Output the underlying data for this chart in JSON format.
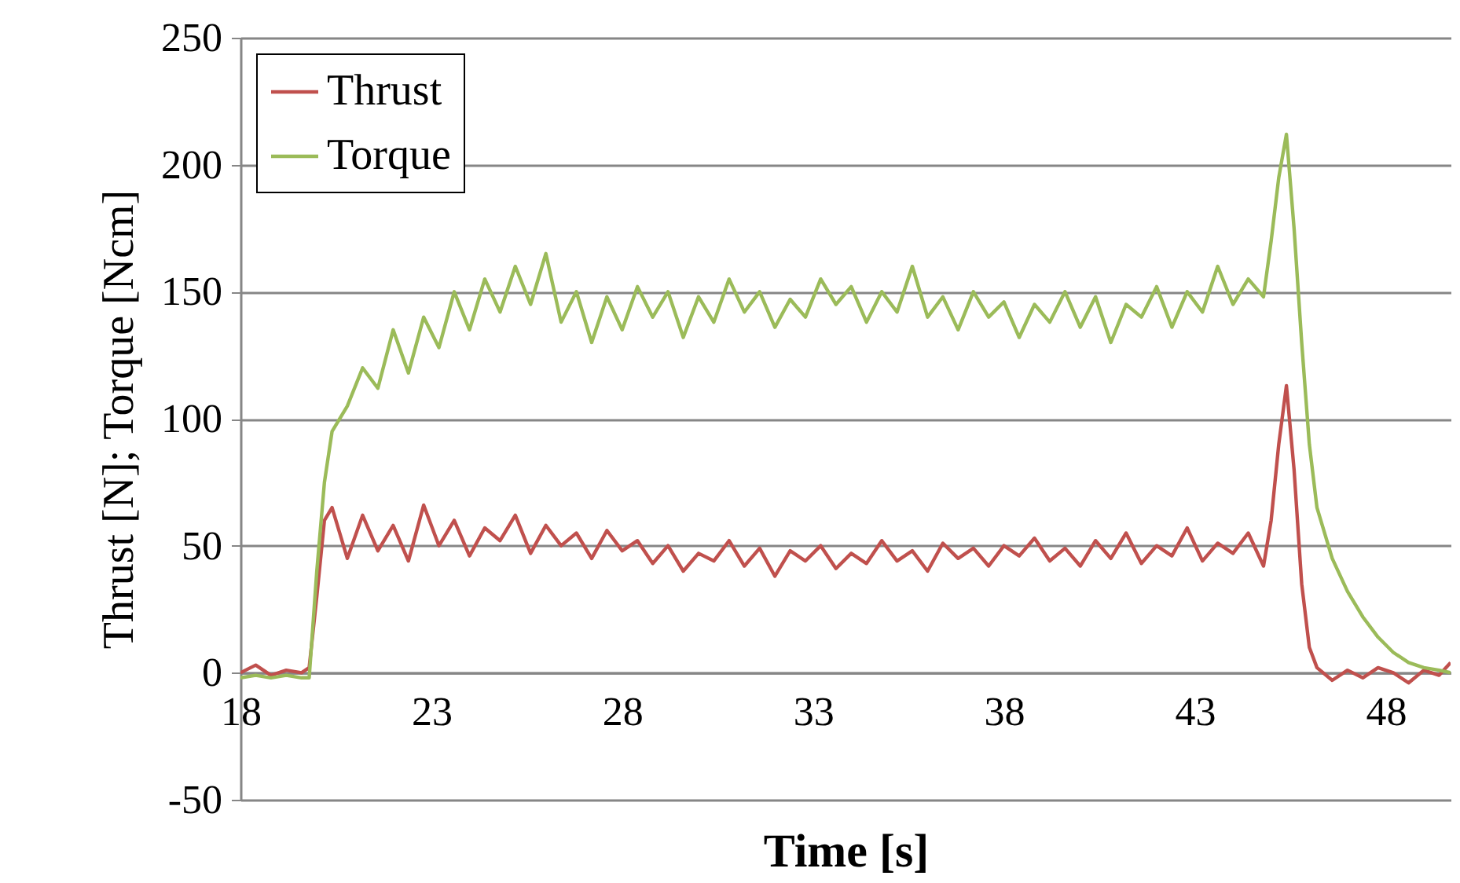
{
  "chart_data": {
    "type": "line",
    "xlabel": "Time [s]",
    "ylabel": "Thrust [N]; Torque [Ncm]",
    "x": [
      18,
      18.4,
      18.8,
      19.2,
      19.6,
      19.8,
      20,
      20.2,
      20.4,
      20.8,
      21.2,
      21.6,
      22,
      22.4,
      22.8,
      23.2,
      23.6,
      24,
      24.4,
      24.8,
      25.2,
      25.6,
      26,
      26.4,
      26.8,
      27.2,
      27.6,
      28,
      28.4,
      28.8,
      29.2,
      29.6,
      30,
      30.4,
      30.8,
      31.2,
      31.6,
      32,
      32.4,
      32.8,
      33.2,
      33.6,
      34,
      34.4,
      34.8,
      35.2,
      35.6,
      36,
      36.4,
      36.8,
      37.2,
      37.6,
      38,
      38.4,
      38.8,
      39.2,
      39.6,
      40,
      40.4,
      40.8,
      41.2,
      41.6,
      42,
      42.4,
      42.8,
      43.2,
      43.6,
      44,
      44.4,
      44.8,
      45,
      45.2,
      45.4,
      45.6,
      45.8,
      46,
      46.2,
      46.6,
      47,
      47.4,
      47.8,
      48.2,
      48.6,
      49,
      49.4,
      49.7
    ],
    "series": [
      {
        "name": "Thrust",
        "color": "#c0504d",
        "values": [
          0,
          3,
          -1,
          1,
          0,
          2,
          30,
          60,
          65,
          45,
          62,
          48,
          58,
          44,
          66,
          50,
          60,
          46,
          57,
          52,
          62,
          47,
          58,
          50,
          55,
          45,
          56,
          48,
          52,
          43,
          50,
          40,
          47,
          44,
          52,
          42,
          49,
          38,
          48,
          44,
          50,
          41,
          47,
          43,
          52,
          44,
          48,
          40,
          51,
          45,
          49,
          42,
          50,
          46,
          53,
          44,
          49,
          42,
          52,
          45,
          55,
          43,
          50,
          46,
          57,
          44,
          51,
          47,
          55,
          42,
          60,
          90,
          113,
          80,
          35,
          10,
          2,
          -3,
          1,
          -2,
          2,
          0,
          -4,
          1,
          -1,
          4
        ]
      },
      {
        "name": "Torque",
        "color": "#9bbb59",
        "values": [
          -2,
          -1,
          -2,
          -1,
          -2,
          -2,
          40,
          75,
          95,
          105,
          120,
          112,
          135,
          118,
          140,
          128,
          150,
          135,
          155,
          142,
          160,
          145,
          165,
          138,
          150,
          130,
          148,
          135,
          152,
          140,
          150,
          132,
          148,
          138,
          155,
          142,
          150,
          136,
          147,
          140,
          155,
          145,
          152,
          138,
          150,
          142,
          160,
          140,
          148,
          135,
          150,
          140,
          146,
          132,
          145,
          138,
          150,
          136,
          148,
          130,
          145,
          140,
          152,
          136,
          150,
          142,
          160,
          145,
          155,
          148,
          170,
          195,
          212,
          175,
          130,
          90,
          65,
          45,
          32,
          22,
          14,
          8,
          4,
          2,
          1,
          0
        ]
      }
    ],
    "xlim": [
      18,
      49.7
    ],
    "xticks": [
      18,
      23,
      28,
      33,
      38,
      43,
      48
    ],
    "ylim": [
      -50,
      250
    ],
    "yticks": [
      -50,
      0,
      50,
      100,
      150,
      200,
      250
    ],
    "grid": "y",
    "legend": "top left",
    "marker": "none",
    "line_style": "solid"
  }
}
